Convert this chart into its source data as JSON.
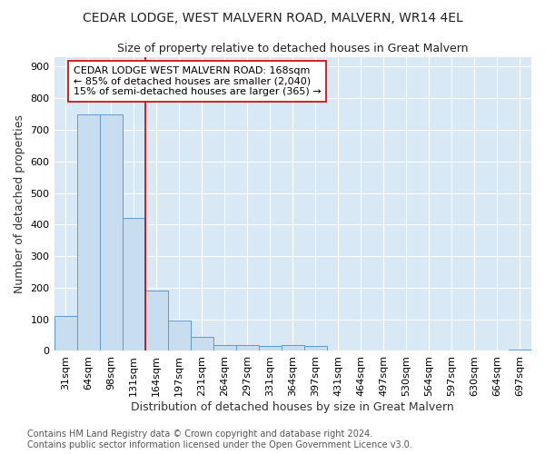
{
  "title": "CEDAR LODGE, WEST MALVERN ROAD, MALVERN, WR14 4EL",
  "subtitle": "Size of property relative to detached houses in Great Malvern",
  "xlabel": "Distribution of detached houses by size in Great Malvern",
  "ylabel": "Number of detached properties",
  "categories": [
    "31sqm",
    "64sqm",
    "98sqm",
    "131sqm",
    "164sqm",
    "197sqm",
    "231sqm",
    "264sqm",
    "297sqm",
    "331sqm",
    "364sqm",
    "397sqm",
    "431sqm",
    "464sqm",
    "497sqm",
    "530sqm",
    "564sqm",
    "597sqm",
    "630sqm",
    "664sqm",
    "697sqm"
  ],
  "values": [
    110,
    750,
    750,
    420,
    190,
    95,
    45,
    20,
    20,
    15,
    20,
    15,
    0,
    0,
    0,
    0,
    0,
    0,
    0,
    0,
    5
  ],
  "bar_color": "#c8ddf0",
  "bar_edgecolor": "#5b9bd5",
  "redline_x": 3.5,
  "annotation_text": "CEDAR LODGE WEST MALVERN ROAD: 168sqm\n← 85% of detached houses are smaller (2,040)\n15% of semi-detached houses are larger (365) →",
  "annotation_box_color": "#ffffff",
  "annotation_box_edgecolor": "#cc0000",
  "redline_color": "#cc0000",
  "ylim": [
    0,
    930
  ],
  "yticks": [
    0,
    100,
    200,
    300,
    400,
    500,
    600,
    700,
    800,
    900
  ],
  "footer": "Contains HM Land Registry data © Crown copyright and database right 2024.\nContains public sector information licensed under the Open Government Licence v3.0.",
  "plot_background_color": "#d8e8f4",
  "title_fontsize": 10,
  "subtitle_fontsize": 9,
  "xlabel_fontsize": 9,
  "ylabel_fontsize": 9,
  "annotation_fontsize": 8,
  "footer_fontsize": 7,
  "tick_fontsize": 8
}
